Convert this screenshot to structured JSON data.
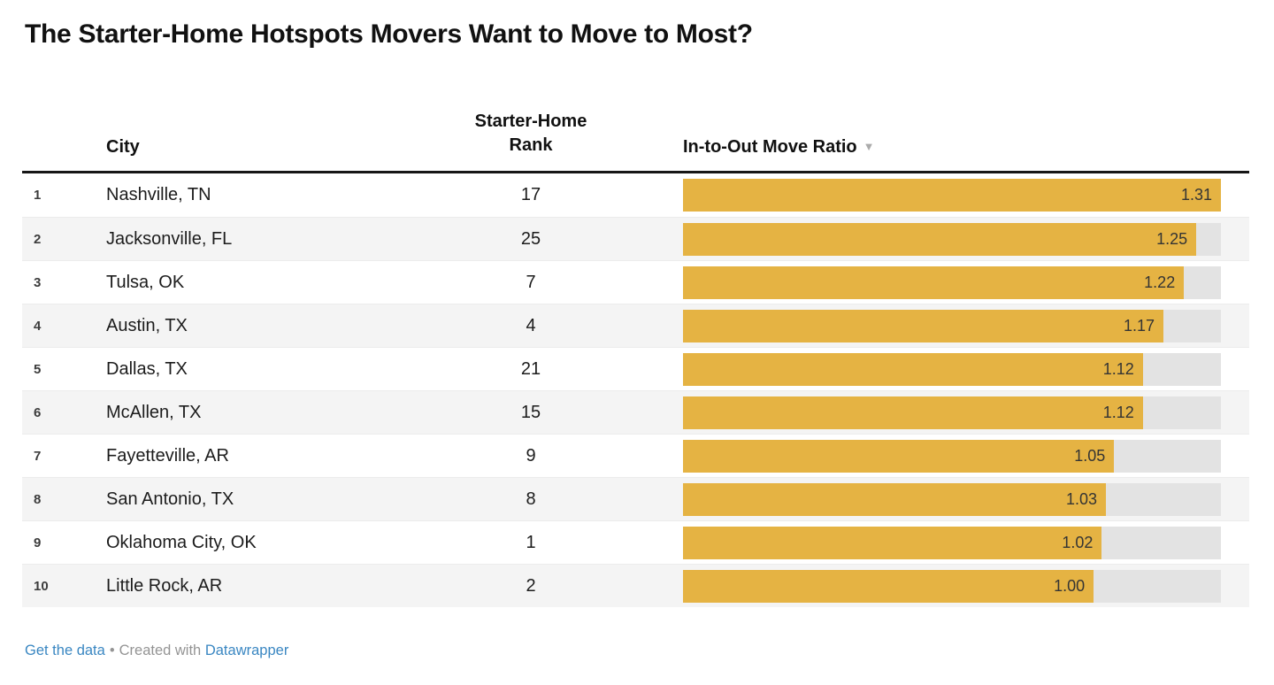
{
  "title": "The Starter-Home Hotspots Movers Want to Move to Most?",
  "table": {
    "header": {
      "index": "",
      "city": "City",
      "rank_line1": "Starter-Home",
      "rank_line2": "Rank",
      "ratio": "In-to-Out Move Ratio",
      "sort_indicator": "▼"
    },
    "rows": [
      {
        "index": "1",
        "city": "Nashville, TN",
        "rank": "17",
        "ratio": "1.31",
        "ratio_value": 1.31
      },
      {
        "index": "2",
        "city": "Jacksonville, FL",
        "rank": "25",
        "ratio": "1.25",
        "ratio_value": 1.25
      },
      {
        "index": "3",
        "city": "Tulsa, OK",
        "rank": "7",
        "ratio": "1.22",
        "ratio_value": 1.22
      },
      {
        "index": "4",
        "city": "Austin, TX",
        "rank": "4",
        "ratio": "1.17",
        "ratio_value": 1.17
      },
      {
        "index": "5",
        "city": "Dallas, TX",
        "rank": "21",
        "ratio": "1.12",
        "ratio_value": 1.12
      },
      {
        "index": "6",
        "city": "McAllen, TX",
        "rank": "15",
        "ratio": "1.12",
        "ratio_value": 1.12
      },
      {
        "index": "7",
        "city": "Fayetteville, AR",
        "rank": "9",
        "ratio": "1.05",
        "ratio_value": 1.05
      },
      {
        "index": "8",
        "city": "San Antonio, TX",
        "rank": "8",
        "ratio": "1.03",
        "ratio_value": 1.03
      },
      {
        "index": "9",
        "city": "Oklahoma City, OK",
        "rank": "1",
        "ratio": "1.02",
        "ratio_value": 1.02
      },
      {
        "index": "10",
        "city": "Little Rock, AR",
        "rank": "2",
        "ratio": "1.00",
        "ratio_value": 1.0
      }
    ]
  },
  "chart_data": {
    "type": "bar",
    "orientation": "horizontal",
    "title": "The Starter-Home Hotspots Movers Want to Move to Most?",
    "categories": [
      "Nashville, TN",
      "Jacksonville, FL",
      "Tulsa, OK",
      "Austin, TX",
      "Dallas, TX",
      "McAllen, TX",
      "Fayetteville, AR",
      "San Antonio, TX",
      "Oklahoma City, OK",
      "Little Rock, AR"
    ],
    "series": [
      {
        "name": "Starter-Home Rank",
        "values": [
          17,
          25,
          7,
          4,
          21,
          15,
          9,
          8,
          1,
          2
        ]
      },
      {
        "name": "In-to-Out Move Ratio",
        "values": [
          1.31,
          1.25,
          1.22,
          1.17,
          1.12,
          1.12,
          1.05,
          1.03,
          1.02,
          1.0
        ]
      }
    ],
    "xlabel": "In-to-Out Move Ratio",
    "ylabel": "City",
    "xlim": [
      0,
      1.31
    ],
    "sorted_by": "In-to-Out Move Ratio",
    "sort_order": "descending",
    "grid": false,
    "legend": false
  },
  "footer": {
    "get_data": "Get the data",
    "separator": "•",
    "created_with": "Created with",
    "tool": "Datawrapper"
  },
  "colors": {
    "bar": "#e5b343",
    "track": "#e3e3e3",
    "row_stripe": "#f4f4f4",
    "link": "#3a87c2",
    "muted_text": "#949494",
    "text": "#1a1a1a"
  }
}
